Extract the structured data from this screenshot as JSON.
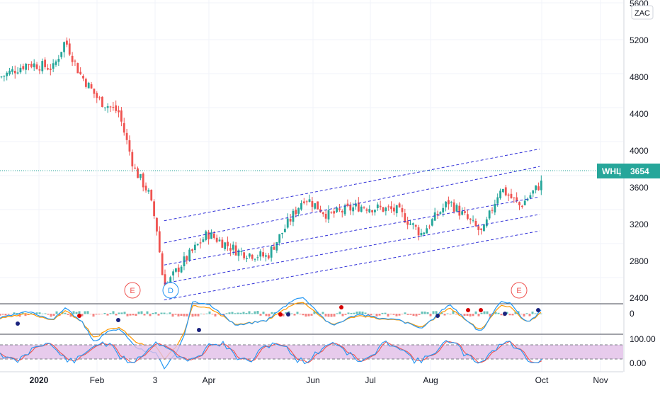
{
  "symbol": {
    "ticker": "WHL",
    "last_price": "3654",
    "currency_button": "ZAC",
    "accent_color": "#26a69a"
  },
  "colors": {
    "up_candle": "#26a69a",
    "down_candle": "#ef5350",
    "channel": "#3030d8",
    "macd_line": "#2196f3",
    "signal_line": "#ff9800",
    "stoch_k": "#2196f3",
    "stoch_d": "#ef5350",
    "stoch_band": "#e1bee7"
  },
  "price_axis": {
    "ticks": [
      "5600",
      "5200",
      "4800",
      "4400",
      "4000",
      "3600",
      "3200",
      "2800",
      "2400"
    ]
  },
  "macd_axis": {
    "ticks": [
      "0"
    ]
  },
  "stoch_axis": {
    "ticks": [
      "100.00",
      "0.00"
    ]
  },
  "time_axis": {
    "labels": [
      "2020",
      "Feb",
      "3",
      "Apr",
      "Jun",
      "Jul",
      "Aug",
      "Oct",
      "Nov"
    ]
  },
  "events": [
    {
      "label": "E",
      "type": "earnings"
    },
    {
      "label": "D",
      "type": "dividend"
    },
    {
      "label": "E",
      "type": "earnings"
    }
  ],
  "chart_data": {
    "type": "candlestick",
    "price_closes_approx": [
      {
        "x": "2020-01-01",
        "y": 4800
      },
      {
        "x": "2020-01-15",
        "y": 4950
      },
      {
        "x": "2020-01-28",
        "y": 4900
      },
      {
        "x": "2020-02-03",
        "y": 5200
      },
      {
        "x": "2020-02-10",
        "y": 4850
      },
      {
        "x": "2020-02-20",
        "y": 4550
      },
      {
        "x": "2020-03-01",
        "y": 4420
      },
      {
        "x": "2020-03-09",
        "y": 3800
      },
      {
        "x": "2020-03-16",
        "y": 3550
      },
      {
        "x": "2020-03-20",
        "y": 3200
      },
      {
        "x": "2020-03-24",
        "y": 2500
      },
      {
        "x": "2020-04-01",
        "y": 2750
      },
      {
        "x": "2020-04-15",
        "y": 3100
      },
      {
        "x": "2020-05-01",
        "y": 2900
      },
      {
        "x": "2020-05-15",
        "y": 2850
      },
      {
        "x": "2020-06-03",
        "y": 3500
      },
      {
        "x": "2020-06-15",
        "y": 3300
      },
      {
        "x": "2020-07-01",
        "y": 3400
      },
      {
        "x": "2020-07-20",
        "y": 3350
      },
      {
        "x": "2020-08-01",
        "y": 3100
      },
      {
        "x": "2020-08-15",
        "y": 3450
      },
      {
        "x": "2020-09-01",
        "y": 3100
      },
      {
        "x": "2020-09-10",
        "y": 3600
      },
      {
        "x": "2020-09-20",
        "y": 3400
      },
      {
        "x": "2020-10-01",
        "y": 3654
      }
    ],
    "price_ylim": [
      2200,
      5600
    ],
    "channel_lines": [
      {
        "x0": "2020-03-24",
        "y0": 2380,
        "x1": "2020-09-30",
        "y1": 3130
      },
      {
        "x0": "2020-03-24",
        "y0": 2560,
        "x1": "2020-09-30",
        "y1": 3310
      },
      {
        "x0": "2020-03-24",
        "y0": 2760,
        "x1": "2020-09-30",
        "y1": 3500
      },
      {
        "x0": "2020-03-24",
        "y0": 3000,
        "x1": "2020-09-30",
        "y1": 3830
      },
      {
        "x0": "2020-03-24",
        "y0": 3240,
        "x1": "2020-09-30",
        "y1": 4020
      }
    ],
    "indicators": [
      "MACD",
      "Stochastic RSI"
    ],
    "grid": true
  }
}
